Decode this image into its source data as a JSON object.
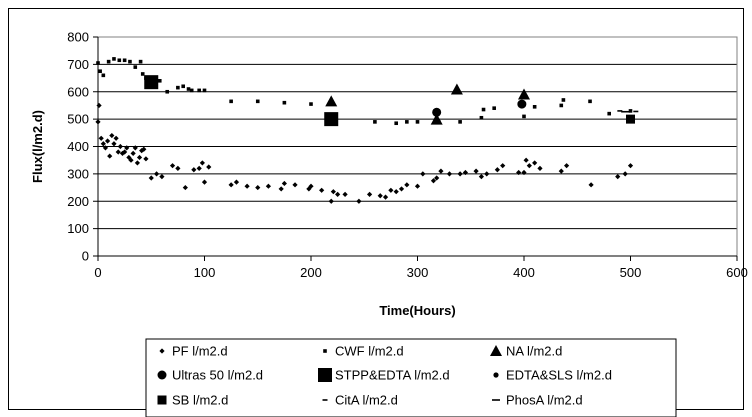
{
  "chart_data": {
    "type": "scatter",
    "xlabel": "Time(Hours)",
    "ylabel": "Flux(l/m2.d)",
    "xlim": [
      0,
      600
    ],
    "ylim": [
      0,
      800
    ],
    "xticks": [
      0,
      100,
      200,
      300,
      400,
      500,
      600
    ],
    "yticks": [
      0,
      100,
      200,
      300,
      400,
      500,
      600,
      700,
      800
    ],
    "grid": "y-major",
    "legend_position": "bottom",
    "series": [
      {
        "name": "PF l/m2.d",
        "marker": "small-diamond",
        "x": [
          0,
          1,
          3,
          5,
          7,
          9,
          11,
          13,
          15,
          17,
          19,
          21,
          23,
          25,
          27,
          29,
          31,
          33,
          35,
          37,
          39,
          41,
          43,
          45,
          50,
          55,
          60,
          70,
          75,
          82,
          90,
          95,
          98,
          100,
          104,
          125,
          130,
          140,
          150,
          160,
          172,
          175,
          185,
          198,
          200,
          210,
          219,
          221,
          225,
          232,
          245,
          255,
          265,
          270,
          275,
          280,
          285,
          290,
          300,
          305,
          315,
          318,
          322,
          330,
          340,
          345,
          355,
          360,
          365,
          375,
          380,
          395,
          400,
          402,
          405,
          410,
          415,
          435,
          440,
          463,
          488,
          495,
          500
        ],
        "y": [
          490,
          550,
          430,
          410,
          395,
          420,
          365,
          440,
          410,
          430,
          380,
          400,
          375,
          380,
          395,
          360,
          350,
          375,
          395,
          340,
          360,
          385,
          390,
          355,
          285,
          300,
          290,
          330,
          320,
          250,
          315,
          320,
          340,
          270,
          325,
          260,
          270,
          255,
          250,
          255,
          245,
          265,
          260,
          245,
          255,
          240,
          200,
          235,
          225,
          225,
          200,
          225,
          220,
          215,
          240,
          235,
          245,
          260,
          255,
          300,
          275,
          285,
          310,
          300,
          300,
          305,
          310,
          290,
          300,
          315,
          330,
          305,
          305,
          350,
          330,
          340,
          320,
          310,
          330,
          260,
          290,
          300,
          330
        ]
      },
      {
        "name": "CWF l/m2.d",
        "marker": "small-square",
        "x": [
          0,
          2,
          5,
          10,
          15,
          20,
          25,
          30,
          35,
          40,
          42,
          45,
          58,
          65,
          75,
          80,
          85,
          88,
          95,
          100,
          125,
          150,
          175,
          200,
          260,
          280,
          290,
          300,
          320,
          340,
          360,
          362,
          372,
          400,
          402,
          410,
          435,
          437,
          462,
          480,
          500
        ],
        "y": [
          705,
          675,
          660,
          710,
          720,
          715,
          715,
          710,
          690,
          710,
          665,
          650,
          640,
          600,
          615,
          620,
          610,
          605,
          605,
          605,
          565,
          565,
          560,
          555,
          490,
          485,
          490,
          490,
          490,
          490,
          505,
          535,
          540,
          510,
          580,
          545,
          550,
          570,
          565,
          520,
          530
        ]
      },
      {
        "name": "NA l/m2.d",
        "marker": "triangle",
        "x": [
          219,
          318,
          337,
          400
        ],
        "y": [
          565,
          498,
          608,
          590
        ]
      },
      {
        "name": "Ultras 50 l/m2.d",
        "marker": "circle",
        "x": [
          318,
          398
        ],
        "y": [
          525,
          555
        ]
      },
      {
        "name": "STPP&EDTA l/m2.d",
        "marker": "big-square",
        "x": [
          50,
          219
        ],
        "y": [
          635,
          500
        ]
      },
      {
        "name": "EDTA&SLS l/m2.d",
        "marker": "small-circle",
        "x": [
          400
        ],
        "y": [
          583
        ]
      },
      {
        "name": "SB l/m2.d",
        "marker": "square",
        "x": [
          500
        ],
        "y": [
          500
        ]
      },
      {
        "name": "CitA l/m2.d",
        "marker": "dash-short",
        "x": [
          490,
          505
        ],
        "y": [
          530,
          528
        ]
      },
      {
        "name": "PhosA l/m2.d",
        "marker": "dash",
        "x": [
          495
        ],
        "y": [
          527
        ]
      }
    ]
  }
}
